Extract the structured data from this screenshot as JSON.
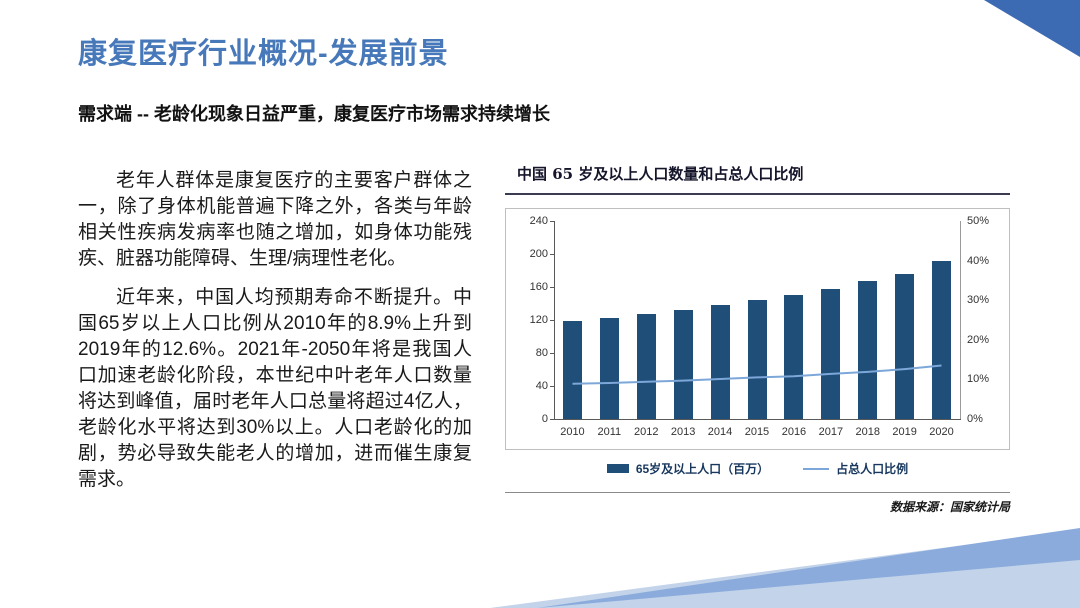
{
  "slide": {
    "title": "康复医疗行业概况-发展前景",
    "subtitle": "需求端 -- 老龄化现象日益严重，康复医疗市场需求持续增长",
    "paragraphs": [
      "老年人群体是康复医疗的主要客户群体之一，除了身体机能普遍下降之外，各类与年龄相关性疾病发病率也随之增加，如身体功能残疾、脏器功能障碍、生理/病理性老化。",
      "近年来，中国人均预期寿命不断提升。中国65岁以上人口比例从2010年的8.9%上升到2019年的12.6%。2021年-2050年将是我国人口加速老龄化阶段，本世纪中叶老年人口数量将达到峰值，届时老年人口总量将超过4亿人，老龄化水平将达到30%以上。人口老龄化的加剧，势必导致失能老人的增加，进而催生康复需求。"
    ]
  },
  "colors": {
    "title_blue": "#4778b9",
    "bar": "#1f4e79",
    "line": "#7da7d9",
    "deco_top": "#3d6bb3",
    "deco_mid": "#8aabdb",
    "deco_light": "#c2d3ea"
  },
  "chart_data": {
    "type": "bar",
    "title": "中国 65 岁及以上人口数量和占总人口比例",
    "categories": [
      "2010",
      "2011",
      "2012",
      "2013",
      "2014",
      "2015",
      "2016",
      "2017",
      "2018",
      "2019",
      "2020"
    ],
    "series": [
      {
        "name": "65岁及以上人口（百万）",
        "kind": "bar",
        "axis": "left",
        "values": [
          119,
          123,
          127,
          132,
          138,
          144,
          150,
          158,
          167,
          176,
          191
        ]
      },
      {
        "name": "占总人口比例",
        "kind": "line",
        "axis": "right",
        "values": [
          8.9,
          9.1,
          9.4,
          9.7,
          10.1,
          10.5,
          10.8,
          11.4,
          11.9,
          12.6,
          13.5
        ]
      }
    ],
    "left_axis": {
      "min": 0,
      "max": 240,
      "ticks": [
        0,
        40,
        80,
        120,
        160,
        200,
        240
      ]
    },
    "right_axis": {
      "min": 0,
      "max": 50,
      "ticks": [
        0,
        10,
        20,
        30,
        40,
        50
      ],
      "format": "percent"
    },
    "grid": false,
    "legend_position": "bottom",
    "source": "数据来源：国家统计局"
  }
}
